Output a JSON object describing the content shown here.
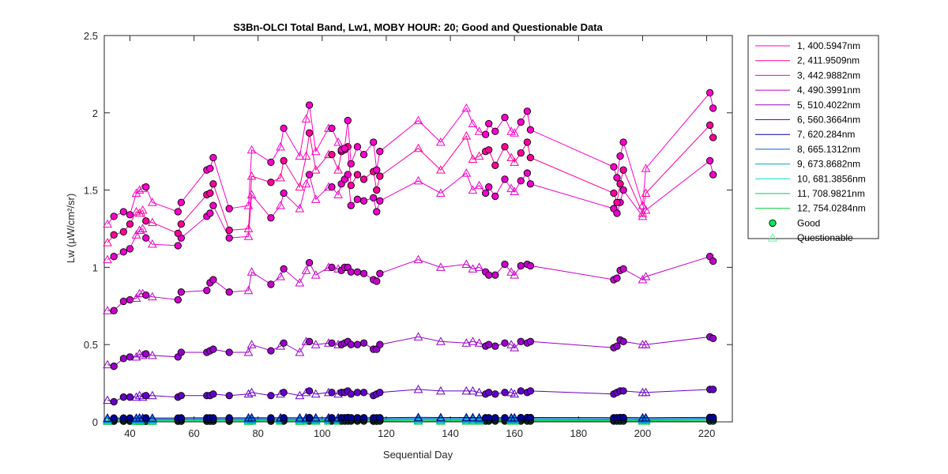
{
  "chart_data": {
    "type": "line",
    "title": "S3Bn-OLCI Total Band,  Lw1, MOBY HOUR: 20;  Good and Questionable Data",
    "xlabel": "Sequential Day",
    "ylabel": "Lw (µW/cm²/sr)",
    "xlim": [
      32,
      228
    ],
    "ylim": [
      0,
      2.5
    ],
    "xticks": [
      40,
      60,
      80,
      100,
      120,
      140,
      160,
      180,
      200,
      220
    ],
    "yticks": [
      0,
      0.5,
      1,
      1.5,
      2,
      2.5
    ],
    "x": [
      33,
      35,
      38,
      40,
      42,
      43,
      44,
      45,
      47,
      55,
      56,
      64,
      65,
      66,
      71,
      77,
      78,
      84,
      87,
      88,
      93,
      95,
      96,
      98,
      102,
      103,
      105,
      106,
      107,
      108,
      109,
      111,
      113,
      116,
      117,
      118,
      130,
      137,
      145,
      147,
      149,
      151,
      152,
      154,
      157,
      159,
      160,
      162,
      164,
      165,
      191,
      192,
      193,
      194,
      200,
      201,
      221,
      222
    ],
    "quality": [
      "Q",
      "G",
      "G",
      "G",
      "Q",
      "Q",
      "Q",
      "G",
      "Q",
      "G",
      "G",
      "G",
      "G",
      "G",
      "G",
      "Q",
      "Q",
      "G",
      "Q",
      "G",
      "Q",
      "Q",
      "G",
      "Q",
      "Q",
      "G",
      "Q",
      "G",
      "G",
      "G",
      "G",
      "G",
      "G",
      "G",
      "G",
      "G",
      "Q",
      "Q",
      "Q",
      "Q",
      "Q",
      "G",
      "G",
      "G",
      "G",
      "Q",
      "Q",
      "G",
      "G",
      "G",
      "G",
      "G",
      "G",
      "G",
      "Q",
      "Q",
      "G",
      "G"
    ],
    "series": [
      {
        "name": "1, 400.5947nm",
        "color": "#ff00cc",
        "values": [
          1.28,
          1.33,
          1.36,
          1.34,
          1.48,
          1.5,
          1.51,
          1.52,
          1.42,
          1.36,
          1.42,
          1.63,
          1.64,
          1.71,
          1.38,
          1.4,
          1.76,
          1.68,
          1.78,
          1.9,
          1.72,
          1.96,
          2.05,
          1.75,
          1.9,
          1.9,
          1.81,
          1.76,
          1.77,
          1.95,
          1.67,
          1.78,
          1.73,
          1.81,
          1.63,
          1.75,
          1.95,
          1.81,
          2.03,
          1.93,
          1.88,
          1.86,
          1.93,
          1.88,
          1.97,
          1.88,
          1.87,
          1.94,
          2.01,
          1.89,
          1.65,
          1.58,
          1.72,
          1.81,
          1.4,
          1.64,
          2.13,
          2.03
        ]
      },
      {
        "name": "2, 411.9509nm",
        "color": "#ff0099",
        "values": [
          1.16,
          1.21,
          1.23,
          1.28,
          1.36,
          1.35,
          1.37,
          1.3,
          1.29,
          1.22,
          1.28,
          1.47,
          1.48,
          1.54,
          1.24,
          1.25,
          1.59,
          1.55,
          1.58,
          1.69,
          1.52,
          1.72,
          1.87,
          1.63,
          1.73,
          1.73,
          1.63,
          1.75,
          1.76,
          1.78,
          1.53,
          1.6,
          1.57,
          1.62,
          1.5,
          1.59,
          1.77,
          1.63,
          1.85,
          1.7,
          1.72,
          1.75,
          1.76,
          1.66,
          1.78,
          1.71,
          1.68,
          1.74,
          1.81,
          1.71,
          1.48,
          1.42,
          1.54,
          1.63,
          1.35,
          1.48,
          1.92,
          1.84
        ]
      },
      {
        "name": "3, 442.9882nm",
        "color": "#ee00cc",
        "values": [
          1.05,
          1.07,
          1.1,
          1.12,
          1.21,
          1.24,
          1.25,
          1.19,
          1.15,
          1.14,
          1.19,
          1.33,
          1.35,
          1.4,
          1.19,
          1.2,
          1.47,
          1.32,
          1.4,
          1.48,
          1.38,
          1.54,
          1.6,
          1.44,
          1.52,
          1.52,
          1.47,
          1.54,
          1.57,
          1.6,
          1.4,
          1.44,
          1.43,
          1.45,
          1.36,
          1.43,
          1.56,
          1.48,
          1.61,
          1.5,
          1.53,
          1.48,
          1.52,
          1.46,
          1.57,
          1.51,
          1.49,
          1.56,
          1.61,
          1.54,
          1.38,
          1.35,
          1.42,
          1.5,
          1.33,
          1.37,
          1.69,
          1.6
        ]
      },
      {
        "name": "4, 490.3991nm",
        "color": "#cc00cc",
        "values": [
          0.72,
          0.72,
          0.78,
          0.79,
          0.8,
          0.83,
          0.83,
          0.82,
          0.81,
          0.79,
          0.84,
          0.85,
          0.9,
          0.92,
          0.84,
          0.85,
          0.97,
          0.89,
          0.94,
          0.99,
          0.9,
          0.98,
          1.03,
          0.95,
          1.0,
          1.0,
          0.99,
          0.98,
          1.0,
          1.0,
          0.97,
          0.97,
          0.96,
          0.92,
          0.91,
          0.96,
          1.05,
          1.0,
          1.02,
          0.99,
          1.0,
          0.97,
          0.95,
          0.95,
          1.02,
          0.97,
          0.95,
          1.01,
          1.02,
          1.01,
          0.92,
          0.93,
          0.98,
          0.99,
          0.92,
          0.94,
          1.07,
          1.04
        ]
      },
      {
        "name": "5, 510.4022nm",
        "color": "#9900cc",
        "values": [
          0.37,
          0.36,
          0.41,
          0.42,
          0.42,
          0.44,
          0.43,
          0.44,
          0.43,
          0.42,
          0.45,
          0.45,
          0.46,
          0.47,
          0.45,
          0.45,
          0.5,
          0.46,
          0.49,
          0.51,
          0.45,
          0.52,
          0.52,
          0.5,
          0.51,
          0.51,
          0.5,
          0.5,
          0.51,
          0.52,
          0.5,
          0.5,
          0.51,
          0.47,
          0.47,
          0.5,
          0.55,
          0.52,
          0.51,
          0.52,
          0.51,
          0.49,
          0.5,
          0.49,
          0.51,
          0.5,
          0.48,
          0.52,
          0.51,
          0.52,
          0.48,
          0.49,
          0.53,
          0.52,
          0.5,
          0.5,
          0.55,
          0.54
        ]
      },
      {
        "name": "6, 560.3664nm",
        "color": "#6600cc",
        "values": [
          0.14,
          0.13,
          0.16,
          0.16,
          0.16,
          0.17,
          0.16,
          0.17,
          0.17,
          0.16,
          0.17,
          0.17,
          0.17,
          0.18,
          0.17,
          0.18,
          0.19,
          0.17,
          0.18,
          0.19,
          0.17,
          0.19,
          0.2,
          0.18,
          0.19,
          0.19,
          0.18,
          0.19,
          0.19,
          0.2,
          0.18,
          0.19,
          0.19,
          0.17,
          0.18,
          0.19,
          0.21,
          0.2,
          0.2,
          0.2,
          0.19,
          0.18,
          0.19,
          0.18,
          0.19,
          0.19,
          0.18,
          0.2,
          0.19,
          0.2,
          0.18,
          0.19,
          0.2,
          0.2,
          0.19,
          0.19,
          0.21,
          0.21
        ]
      },
      {
        "name": "7,  620.284nm",
        "color": "#000099",
        "values": [
          0.025,
          0.025,
          0.025,
          0.025,
          0.025,
          0.026,
          0.025,
          0.026,
          0.025,
          0.025,
          0.026,
          0.026,
          0.026,
          0.026,
          0.026,
          0.026,
          0.027,
          0.026,
          0.027,
          0.027,
          0.026,
          0.027,
          0.028,
          0.027,
          0.027,
          0.027,
          0.027,
          0.027,
          0.027,
          0.028,
          0.027,
          0.027,
          0.027,
          0.026,
          0.026,
          0.027,
          0.029,
          0.028,
          0.028,
          0.028,
          0.027,
          0.027,
          0.027,
          0.027,
          0.027,
          0.027,
          0.027,
          0.028,
          0.028,
          0.028,
          0.027,
          0.027,
          0.028,
          0.028,
          0.027,
          0.027,
          0.029,
          0.029
        ]
      },
      {
        "name": "8, 665.1312nm",
        "color": "#0066cc",
        "values": [
          0.018,
          0.018,
          0.018,
          0.018,
          0.018,
          0.019,
          0.018,
          0.019,
          0.018,
          0.018,
          0.019,
          0.019,
          0.019,
          0.019,
          0.019,
          0.019,
          0.02,
          0.019,
          0.02,
          0.02,
          0.019,
          0.02,
          0.021,
          0.02,
          0.02,
          0.02,
          0.02,
          0.02,
          0.02,
          0.021,
          0.02,
          0.02,
          0.02,
          0.019,
          0.019,
          0.02,
          0.022,
          0.021,
          0.021,
          0.021,
          0.02,
          0.02,
          0.02,
          0.02,
          0.02,
          0.02,
          0.02,
          0.021,
          0.021,
          0.021,
          0.02,
          0.02,
          0.021,
          0.021,
          0.02,
          0.02,
          0.022,
          0.022
        ]
      },
      {
        "name": "9, 673.8682nm",
        "color": "#00aacc",
        "values": [
          0.016,
          0.016,
          0.016,
          0.016,
          0.016,
          0.017,
          0.016,
          0.017,
          0.016,
          0.016,
          0.017,
          0.017,
          0.017,
          0.017,
          0.017,
          0.017,
          0.018,
          0.017,
          0.018,
          0.018,
          0.017,
          0.018,
          0.019,
          0.018,
          0.018,
          0.018,
          0.018,
          0.018,
          0.018,
          0.019,
          0.018,
          0.018,
          0.018,
          0.017,
          0.017,
          0.018,
          0.02,
          0.019,
          0.019,
          0.019,
          0.018,
          0.018,
          0.018,
          0.018,
          0.018,
          0.018,
          0.018,
          0.019,
          0.019,
          0.019,
          0.018,
          0.018,
          0.019,
          0.019,
          0.018,
          0.018,
          0.02,
          0.02
        ]
      },
      {
        "name": "10, 681.3856nm",
        "color": "#00ddcc",
        "values": [
          0.014,
          0.014,
          0.014,
          0.014,
          0.014,
          0.015,
          0.014,
          0.015,
          0.014,
          0.014,
          0.015,
          0.015,
          0.015,
          0.015,
          0.015,
          0.015,
          0.016,
          0.015,
          0.016,
          0.016,
          0.015,
          0.016,
          0.017,
          0.016,
          0.016,
          0.016,
          0.016,
          0.016,
          0.016,
          0.017,
          0.016,
          0.016,
          0.016,
          0.015,
          0.015,
          0.016,
          0.018,
          0.017,
          0.017,
          0.017,
          0.016,
          0.016,
          0.016,
          0.016,
          0.016,
          0.016,
          0.016,
          0.017,
          0.017,
          0.017,
          0.016,
          0.016,
          0.017,
          0.017,
          0.016,
          0.016,
          0.018,
          0.018
        ]
      },
      {
        "name": "11, 708.9821nm",
        "color": "#00cc66",
        "values": [
          0.008,
          0.008,
          0.008,
          0.008,
          0.008,
          0.009,
          0.008,
          0.009,
          0.008,
          0.008,
          0.009,
          0.009,
          0.009,
          0.009,
          0.009,
          0.009,
          0.01,
          0.009,
          0.01,
          0.01,
          0.009,
          0.01,
          0.01,
          0.01,
          0.01,
          0.01,
          0.01,
          0.01,
          0.01,
          0.01,
          0.01,
          0.01,
          0.01,
          0.009,
          0.009,
          0.01,
          0.011,
          0.01,
          0.01,
          0.01,
          0.01,
          0.01,
          0.01,
          0.01,
          0.01,
          0.01,
          0.01,
          0.01,
          0.01,
          0.01,
          0.01,
          0.01,
          0.01,
          0.01,
          0.01,
          0.01,
          0.011,
          0.011
        ]
      },
      {
        "name": "12, 754.0284nm",
        "color": "#00cc33",
        "values": [
          0.004,
          0.004,
          0.004,
          0.004,
          0.004,
          0.004,
          0.004,
          0.004,
          0.004,
          0.004,
          0.004,
          0.004,
          0.004,
          0.004,
          0.004,
          0.004,
          0.005,
          0.004,
          0.005,
          0.005,
          0.004,
          0.005,
          0.005,
          0.005,
          0.005,
          0.005,
          0.005,
          0.005,
          0.005,
          0.005,
          0.005,
          0.005,
          0.005,
          0.004,
          0.004,
          0.005,
          0.005,
          0.005,
          0.005,
          0.005,
          0.005,
          0.005,
          0.005,
          0.005,
          0.005,
          0.005,
          0.005,
          0.005,
          0.005,
          0.005,
          0.005,
          0.005,
          0.005,
          0.005,
          0.005,
          0.005,
          0.005,
          0.005
        ]
      }
    ],
    "markers": [
      {
        "label": "Good",
        "shape": "circle",
        "color": "#00ee55"
      },
      {
        "label": "Questionable",
        "shape": "triangle",
        "color": "#55ff99"
      }
    ],
    "legend_position": "outside-top-right",
    "grid": false
  }
}
